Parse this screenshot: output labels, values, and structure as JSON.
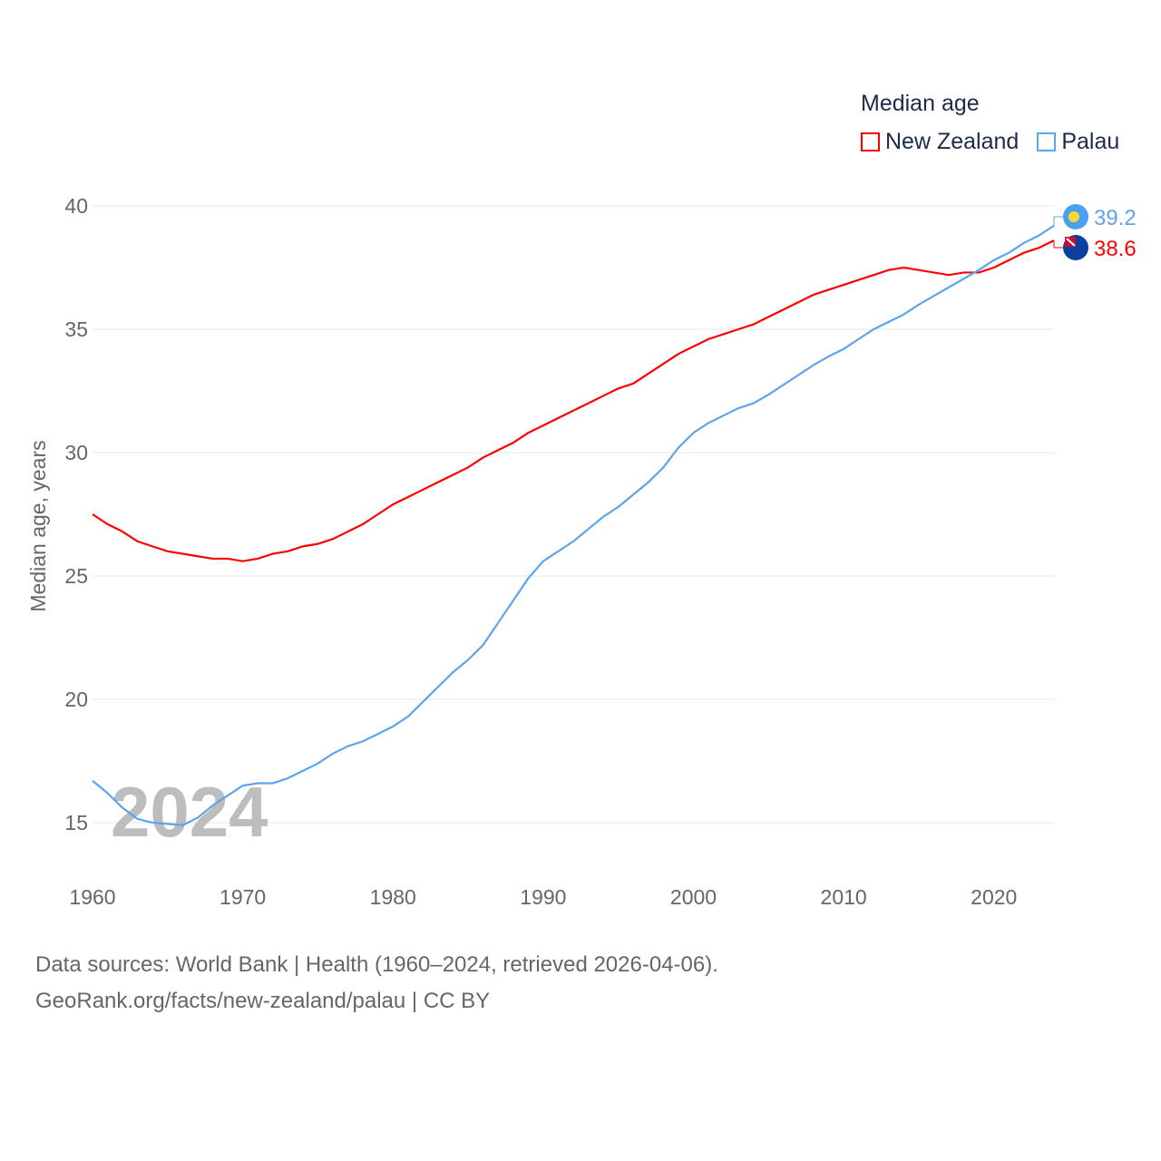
{
  "chart_data": {
    "type": "line",
    "title": "Median age",
    "ylabel": "Median age, years",
    "xlabel": "",
    "xlim": [
      1960,
      2024
    ],
    "ylim": [
      15,
      40
    ],
    "yticks": [
      15,
      20,
      25,
      30,
      35,
      40
    ],
    "xticks": [
      1960,
      1970,
      1980,
      1990,
      2000,
      2010,
      2020
    ],
    "grid": true,
    "legend_position": "top-right",
    "year_watermark": "2024",
    "x": [
      1960,
      1961,
      1962,
      1963,
      1964,
      1965,
      1966,
      1967,
      1968,
      1969,
      1970,
      1971,
      1972,
      1973,
      1974,
      1975,
      1976,
      1977,
      1978,
      1979,
      1980,
      1981,
      1982,
      1983,
      1984,
      1985,
      1986,
      1987,
      1988,
      1989,
      1990,
      1991,
      1992,
      1993,
      1994,
      1995,
      1996,
      1997,
      1998,
      1999,
      2000,
      2001,
      2002,
      2003,
      2004,
      2005,
      2006,
      2007,
      2008,
      2009,
      2010,
      2011,
      2012,
      2013,
      2014,
      2015,
      2016,
      2017,
      2018,
      2019,
      2020,
      2021,
      2022,
      2023,
      2024
    ],
    "series": [
      {
        "name": "New Zealand",
        "color": "#ff0000",
        "end_label": "38.6",
        "values": [
          27.5,
          27.1,
          26.8,
          26.4,
          26.2,
          26.0,
          25.9,
          25.8,
          25.7,
          25.7,
          25.6,
          25.7,
          25.9,
          26.0,
          26.2,
          26.3,
          26.5,
          26.8,
          27.1,
          27.5,
          27.9,
          28.2,
          28.5,
          28.8,
          29.1,
          29.4,
          29.8,
          30.1,
          30.4,
          30.8,
          31.1,
          31.4,
          31.7,
          32.0,
          32.3,
          32.6,
          32.8,
          33.2,
          33.6,
          34.0,
          34.3,
          34.6,
          34.8,
          35.0,
          35.2,
          35.5,
          35.8,
          36.1,
          36.4,
          36.6,
          36.8,
          37.0,
          37.2,
          37.4,
          37.5,
          37.4,
          37.3,
          37.2,
          37.3,
          37.3,
          37.5,
          37.8,
          38.1,
          38.3,
          38.6
        ]
      },
      {
        "name": "Palau",
        "color": "#5ba4ee",
        "end_label": "39.2",
        "values": [
          16.7,
          16.2,
          15.6,
          15.15,
          15.0,
          14.95,
          14.9,
          15.2,
          15.7,
          16.1,
          16.5,
          16.6,
          16.6,
          16.8,
          17.1,
          17.4,
          17.8,
          18.1,
          18.3,
          18.6,
          18.9,
          19.3,
          19.9,
          20.5,
          21.1,
          21.6,
          22.2,
          23.1,
          24.0,
          24.9,
          25.6,
          26.0,
          26.4,
          26.9,
          27.4,
          27.8,
          28.3,
          28.8,
          29.4,
          30.2,
          30.8,
          31.2,
          31.5,
          31.8,
          32.0,
          32.35,
          32.75,
          33.15,
          33.55,
          33.9,
          34.2,
          34.6,
          35.0,
          35.3,
          35.6,
          36.0,
          36.35,
          36.7,
          37.05,
          37.4,
          37.8,
          38.1,
          38.5,
          38.8,
          39.2
        ]
      }
    ]
  },
  "source": {
    "line1": "Data sources: World Bank | Health (1960–2024, retrieved 2026-04-06).",
    "line2": "GeoRank.org/facts/new-zealand/palau | CC BY"
  }
}
